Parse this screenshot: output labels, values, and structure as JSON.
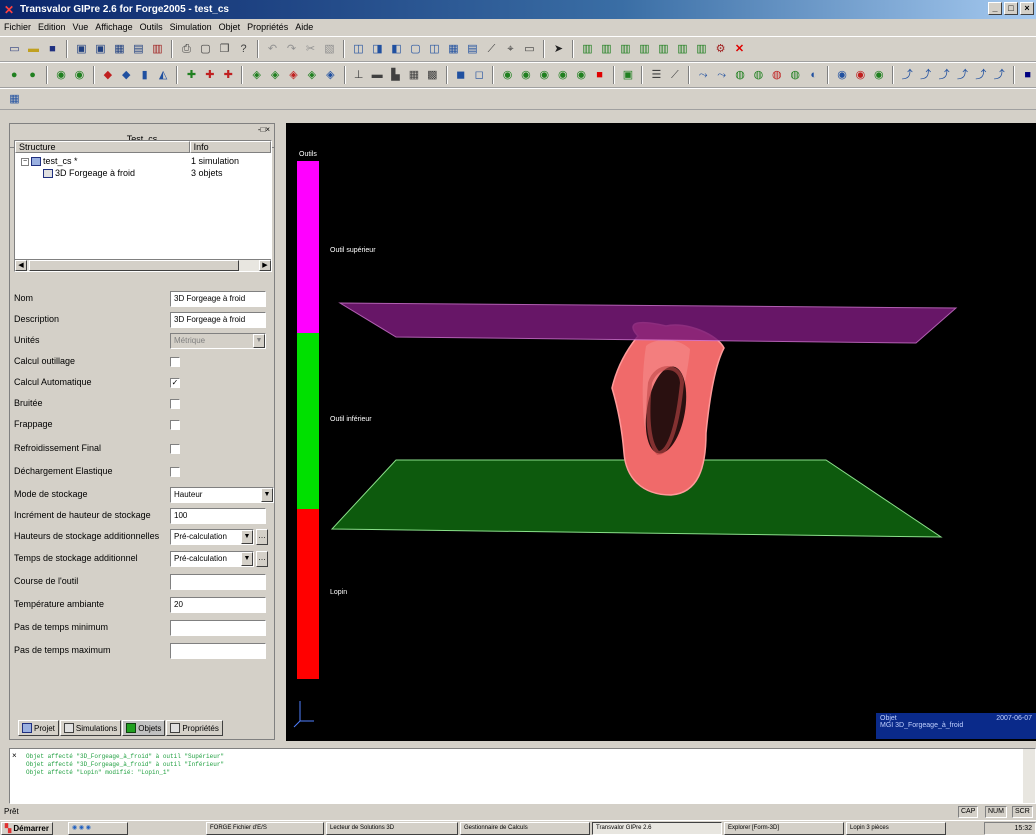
{
  "window": {
    "title": "Transvalor GIPre 2.6 for Forge2005 - test_cs"
  },
  "menu": [
    "Fichier",
    "Edition",
    "Vue",
    "Affichage",
    "Outils",
    "Simulation",
    "Objet",
    "Propriétés",
    "Aide"
  ],
  "left_panel": {
    "caption": "Test_cs",
    "tree": {
      "columns": [
        "Structure",
        "Info"
      ],
      "rows": [
        {
          "name": "test_cs *",
          "info": "1 simulation"
        },
        {
          "name": "3D Forgeage à froid",
          "info": "3 objets"
        }
      ]
    },
    "properties": [
      {
        "label": "Nom",
        "kind": "input",
        "value": "3D Forgeage à froid"
      },
      {
        "label": "Description",
        "kind": "input",
        "value": "3D Forgeage à froid"
      },
      {
        "label": "Unités",
        "kind": "select-disabled",
        "value": "Métrique"
      },
      {
        "label": "Calcul outillage",
        "kind": "check",
        "checked": false
      },
      {
        "label": "Calcul Automatique",
        "kind": "check",
        "checked": true
      },
      {
        "label": "Bruitée",
        "kind": "check",
        "checked": false
      },
      {
        "label": "Frappage",
        "kind": "check",
        "checked": false
      },
      {
        "label": "Refroidissement Final",
        "kind": "check",
        "checked": false
      },
      {
        "label": "Déchargement Elastique",
        "kind": "check",
        "checked": false
      },
      {
        "label": "Mode de stockage",
        "kind": "select",
        "value": "Hauteur"
      },
      {
        "label": "Incrément de hauteur de stockage",
        "kind": "input",
        "value": "100"
      },
      {
        "label": "Hauteurs de stockage additionnelles",
        "kind": "select-more",
        "value": "Pré-calculation"
      },
      {
        "label": "Temps de stockage additionnel",
        "kind": "select-more",
        "value": "Pré-calculation"
      },
      {
        "label": "Course de l'outil",
        "kind": "input",
        "value": ""
      },
      {
        "label": "Température ambiante",
        "kind": "input",
        "value": "20"
      },
      {
        "label": "Pas de temps minimum",
        "kind": "input",
        "value": ""
      },
      {
        "label": "Pas de temps maximum",
        "kind": "input",
        "value": ""
      }
    ],
    "tabs": [
      "Projet",
      "Simulations",
      "Objets",
      "Propriétés"
    ]
  },
  "viewport": {
    "bar_title": "Outils",
    "labels": [
      "Outil supérieur",
      "Outil inférieur",
      "Lopin"
    ],
    "info": {
      "line1_left": "Objet",
      "line1_right": "2007-06-07",
      "line2": "MGI 3D_Forgeage_à_froid"
    },
    "colors": {
      "top_segment": "#ff00ff",
      "mid_segment": "#00e000",
      "bottom_segment": "#ff0000",
      "top_plane": "#7a1a7a",
      "bottom_plane": "#0d5a0d",
      "part": "#f06a6a"
    }
  },
  "console": {
    "lines": [
      "Objet affecté \"3D_Forgeage_à_froid\" à outil \"Supérieur\"",
      "Objet affecté \"3D_Forgeage_à_froid\" à outil \"Inférieur\"",
      "Objet affecté \"Lopin\" modifié: \"Lopin_1\""
    ]
  },
  "status": {
    "left": "Prêt",
    "cells": [
      "CAP",
      "NUM",
      "SCR"
    ]
  },
  "taskbar": {
    "start": "Démarrer",
    "tasks": [
      "FORGE Fichier d'E/S",
      "Lecteur de Solutions 3D",
      "Gestionnaire de Calculs",
      "Transvalor GIPre 2.6",
      "Explorer [Form-3D]",
      "Lopin 3 pièces"
    ],
    "tray_time": "15:32"
  }
}
